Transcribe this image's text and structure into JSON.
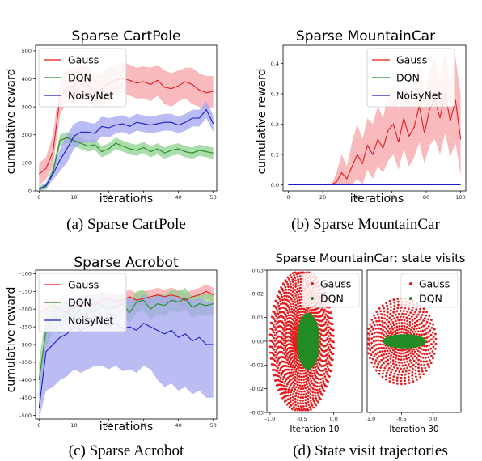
{
  "colors": {
    "gauss": "#e8191c",
    "gauss_band": "#f5a3a5",
    "dqn": "#238b23",
    "dqn_band": "#8fd08f",
    "noisynet": "#1a1acc",
    "noisynet_band": "#a6a6f0"
  },
  "chart_data": [
    {
      "type": "line",
      "title": "Sparse CartPole",
      "caption": "(a)  Sparse CartPole",
      "xlabel": "iterations",
      "ylabel": "cumulative reward",
      "xlim": [
        -1,
        51
      ],
      "ylim": [
        0,
        520
      ],
      "xticks": [
        "0",
        "10",
        "20",
        "30",
        "40",
        "50"
      ],
      "yticks": [
        "0",
        "100",
        "200",
        "300",
        "400",
        "500"
      ],
      "legend": "top-left",
      "x": [
        0,
        2,
        4,
        6,
        8,
        10,
        12,
        14,
        16,
        18,
        20,
        22,
        24,
        26,
        28,
        30,
        32,
        34,
        36,
        38,
        40,
        42,
        44,
        46,
        48,
        50
      ],
      "series": [
        {
          "name": "Gauss",
          "color_key": "gauss",
          "values": [
            60,
            80,
            140,
            330,
            370,
            375,
            395,
            380,
            350,
            365,
            385,
            395,
            400,
            395,
            385,
            390,
            380,
            395,
            370,
            365,
            375,
            390,
            380,
            360,
            350,
            355
          ],
          "lower": [
            20,
            40,
            90,
            270,
            320,
            310,
            340,
            320,
            300,
            300,
            330,
            340,
            350,
            340,
            330,
            330,
            320,
            340,
            310,
            300,
            320,
            330,
            310,
            300,
            290,
            300
          ],
          "upper": [
            100,
            120,
            200,
            390,
            430,
            440,
            450,
            440,
            410,
            420,
            440,
            450,
            460,
            450,
            440,
            445,
            440,
            450,
            430,
            420,
            430,
            440,
            440,
            420,
            410,
            410
          ]
        },
        {
          "name": "DQN",
          "color_key": "dqn",
          "values": [
            10,
            15,
            70,
            180,
            190,
            180,
            170,
            160,
            165,
            140,
            150,
            170,
            160,
            150,
            145,
            155,
            140,
            150,
            135,
            145,
            150,
            140,
            135,
            145,
            140,
            135
          ],
          "lower": [
            0,
            5,
            50,
            160,
            170,
            160,
            150,
            140,
            145,
            120,
            130,
            150,
            140,
            130,
            125,
            135,
            120,
            130,
            115,
            125,
            130,
            120,
            115,
            125,
            120,
            115
          ],
          "upper": [
            20,
            25,
            90,
            200,
            210,
            200,
            190,
            180,
            185,
            160,
            170,
            190,
            180,
            170,
            165,
            175,
            160,
            170,
            155,
            165,
            170,
            160,
            155,
            165,
            160,
            155
          ]
        },
        {
          "name": "NoisyNet",
          "color_key": "noisynet",
          "values": [
            5,
            20,
            60,
            110,
            150,
            195,
            210,
            210,
            205,
            230,
            225,
            235,
            240,
            230,
            245,
            240,
            235,
            240,
            245,
            245,
            235,
            245,
            260,
            260,
            290,
            240
          ],
          "lower": [
            0,
            10,
            40,
            70,
            100,
            150,
            170,
            175,
            170,
            195,
            190,
            205,
            210,
            200,
            215,
            210,
            205,
            210,
            215,
            215,
            205,
            215,
            230,
            230,
            260,
            210
          ],
          "upper": [
            10,
            30,
            80,
            150,
            200,
            240,
            250,
            245,
            240,
            265,
            260,
            265,
            270,
            260,
            275,
            270,
            265,
            270,
            275,
            275,
            265,
            275,
            290,
            290,
            320,
            270
          ]
        }
      ]
    },
    {
      "type": "line",
      "title": "Sparse MountainCar",
      "caption": "(b)  Sparse MountainCar",
      "xlabel": "iterations",
      "ylabel": "cumulative reward",
      "xlim": [
        -3,
        103
      ],
      "ylim": [
        -0.02,
        0.46
      ],
      "xticks": [
        "0",
        "20",
        "40",
        "60",
        "80",
        "100"
      ],
      "yticks": [
        "0.0",
        "0.1",
        "0.2",
        "0.3",
        "0.4"
      ],
      "legend": "top-right",
      "x": [
        0,
        5,
        10,
        15,
        20,
        25,
        28,
        31,
        34,
        37,
        40,
        43,
        46,
        49,
        52,
        55,
        58,
        61,
        64,
        67,
        70,
        73,
        76,
        79,
        82,
        85,
        88,
        91,
        94,
        97,
        100
      ],
      "series": [
        {
          "name": "Gauss",
          "color_key": "gauss",
          "values": [
            0,
            0,
            0,
            0,
            0,
            0,
            0.01,
            0.04,
            0.02,
            0.06,
            0.1,
            0.07,
            0.13,
            0.1,
            0.15,
            0.12,
            0.18,
            0.2,
            0.14,
            0.22,
            0.16,
            0.19,
            0.26,
            0.17,
            0.25,
            0.28,
            0.22,
            0.3,
            0.21,
            0.28,
            0.15
          ],
          "lower": [
            0,
            0,
            0,
            0,
            0,
            0,
            0,
            0,
            0,
            0,
            0.02,
            0,
            0.05,
            0.02,
            0.06,
            0.04,
            0.08,
            0.1,
            0.05,
            0.12,
            0.06,
            0.09,
            0.14,
            0.07,
            0.13,
            0.15,
            0.1,
            0.17,
            0.09,
            0.14,
            0.03
          ],
          "upper": [
            0,
            0,
            0,
            0,
            0,
            0,
            0.04,
            0.1,
            0.06,
            0.14,
            0.2,
            0.15,
            0.22,
            0.2,
            0.26,
            0.22,
            0.3,
            0.33,
            0.25,
            0.35,
            0.28,
            0.32,
            0.4,
            0.3,
            0.38,
            0.42,
            0.35,
            0.44,
            0.34,
            0.42,
            0.3
          ]
        },
        {
          "name": "DQN",
          "color_key": "dqn",
          "values": [
            0,
            0,
            0,
            0,
            0,
            0,
            0,
            0,
            0,
            0,
            0,
            0,
            0,
            0,
            0,
            0,
            0,
            0,
            0,
            0,
            0,
            0,
            0,
            0,
            0,
            0,
            0,
            0,
            0,
            0,
            0
          ],
          "lower": [
            0,
            0,
            0,
            0,
            0,
            0,
            0,
            0,
            0,
            0,
            0,
            0,
            0,
            0,
            0,
            0,
            0,
            0,
            0,
            0,
            0,
            0,
            0,
            0,
            0,
            0,
            0,
            0,
            0,
            0,
            0
          ],
          "upper": [
            0,
            0,
            0,
            0,
            0,
            0,
            0,
            0,
            0,
            0,
            0,
            0,
            0,
            0,
            0,
            0,
            0,
            0,
            0,
            0,
            0,
            0,
            0,
            0,
            0,
            0,
            0,
            0,
            0,
            0,
            0
          ]
        },
        {
          "name": "NoisyNet",
          "color_key": "noisynet",
          "values": [
            0,
            0,
            0,
            0,
            0,
            0,
            0,
            0,
            0,
            0,
            0,
            0,
            0,
            0,
            0,
            0,
            0,
            0,
            0,
            0,
            0,
            0,
            0,
            0,
            0,
            0,
            0,
            0,
            0,
            0,
            0
          ],
          "lower": [
            0,
            0,
            0,
            0,
            0,
            0,
            0,
            0,
            0,
            0,
            0,
            0,
            0,
            0,
            0,
            0,
            0,
            0,
            0,
            0,
            0,
            0,
            0,
            0,
            0,
            0,
            0,
            0,
            0,
            0,
            0
          ],
          "upper": [
            0,
            0,
            0,
            0,
            0,
            0,
            0,
            0,
            0,
            0,
            0,
            0,
            0,
            0,
            0,
            0,
            0,
            0,
            0,
            0,
            0,
            0,
            0,
            0,
            0,
            0,
            0,
            0,
            0,
            0,
            0
          ]
        }
      ]
    },
    {
      "type": "line",
      "title": "Sparse Acrobot",
      "caption": "(c)  Sparse Acrobot",
      "xlabel": "iterations",
      "ylabel": "cumulative reward",
      "xlim": [
        -1,
        51
      ],
      "ylim": [
        -510,
        -90
      ],
      "xticks": [
        "0",
        "10",
        "20",
        "30",
        "40",
        "50"
      ],
      "yticks": [
        "-100",
        "-150",
        "-200",
        "-250",
        "-300",
        "-350",
        "-400",
        "-450",
        "-500"
      ],
      "legend": "top-right",
      "x": [
        0,
        2,
        4,
        6,
        8,
        10,
        12,
        14,
        16,
        18,
        20,
        22,
        24,
        26,
        28,
        30,
        32,
        34,
        36,
        38,
        40,
        42,
        44,
        46,
        48,
        50
      ],
      "series": [
        {
          "name": "Gauss",
          "color_key": "gauss",
          "values": [
            -210,
            -200,
            -190,
            -200,
            -210,
            -195,
            -185,
            -180,
            -190,
            -175,
            -170,
            -180,
            -175,
            -165,
            -175,
            -170,
            -165,
            -160,
            -165,
            -160,
            -165,
            -175,
            -165,
            -160,
            -150,
            -160
          ],
          "lower": [
            -230,
            -220,
            -210,
            -230,
            -250,
            -220,
            -205,
            -200,
            -210,
            -195,
            -190,
            -200,
            -195,
            -185,
            -195,
            -190,
            -185,
            -180,
            -185,
            -180,
            -185,
            -195,
            -185,
            -180,
            -170,
            -180
          ],
          "upper": [
            -190,
            -180,
            -170,
            -175,
            -175,
            -170,
            -165,
            -160,
            -170,
            -155,
            -150,
            -160,
            -155,
            -145,
            -155,
            -150,
            -145,
            -140,
            -145,
            -140,
            -145,
            -155,
            -145,
            -140,
            -130,
            -140
          ]
        },
        {
          "name": "DQN",
          "color_key": "dqn",
          "values": [
            -400,
            -260,
            -220,
            -230,
            -210,
            -220,
            -200,
            -210,
            -205,
            -190,
            -200,
            -195,
            -185,
            -210,
            -180,
            -175,
            -200,
            -185,
            -190,
            -175,
            -180,
            -170,
            -195,
            -185,
            -190,
            -185
          ],
          "lower": [
            -450,
            -310,
            -260,
            -270,
            -250,
            -250,
            -230,
            -240,
            -235,
            -220,
            -230,
            -225,
            -215,
            -240,
            -210,
            -205,
            -230,
            -215,
            -220,
            -205,
            -210,
            -200,
            -225,
            -215,
            -220,
            -215
          ],
          "upper": [
            -350,
            -210,
            -180,
            -190,
            -175,
            -190,
            -170,
            -180,
            -175,
            -160,
            -170,
            -165,
            -155,
            -180,
            -150,
            -145,
            -170,
            -155,
            -160,
            -145,
            -150,
            -140,
            -165,
            -155,
            -160,
            -155
          ]
        },
        {
          "name": "NoisyNet",
          "color_key": "noisynet",
          "values": [
            -480,
            -320,
            -300,
            -280,
            -270,
            -250,
            -260,
            -250,
            -240,
            -235,
            -250,
            -240,
            -255,
            -250,
            -260,
            -240,
            -250,
            -260,
            -270,
            -260,
            -280,
            -270,
            -290,
            -280,
            -300,
            -300
          ],
          "lower": [
            -510,
            -430,
            -420,
            -400,
            -390,
            -370,
            -380,
            -370,
            -360,
            -360,
            -370,
            -360,
            -375,
            -370,
            -380,
            -360,
            -370,
            -400,
            -420,
            -410,
            -430,
            -420,
            -440,
            -430,
            -450,
            -450
          ],
          "upper": [
            -440,
            -220,
            -200,
            -190,
            -180,
            -170,
            -170,
            -160,
            -160,
            -150,
            -165,
            -160,
            -170,
            -165,
            -175,
            -160,
            -170,
            -160,
            -165,
            -160,
            -170,
            -165,
            -175,
            -170,
            -180,
            -180
          ]
        }
      ]
    },
    {
      "type": "scatter",
      "title": "Sparse MountainCar: state visits",
      "caption": "(d)  State visit trajectories",
      "legend": "top-right",
      "series_names": [
        "Gauss",
        "DQN"
      ],
      "panels": [
        {
          "label": "Iteration 10",
          "xlim": [
            -1.05,
            0.45
          ],
          "ylim": [
            -0.03,
            0.03
          ],
          "xticks": [
            "-1.0",
            "-0.5",
            "0.0"
          ],
          "yticks": [
            "0.03",
            "0.02",
            "0.01",
            "0.00",
            "-0.01",
            "-0.02",
            "-0.03"
          ],
          "gauss": {
            "cx": -0.5,
            "cy": 0.0,
            "r_min": 0.03,
            "r_max": 0.5,
            "v_max": 0.03
          },
          "dqn": {
            "cx": -0.4,
            "cy": 0.0,
            "rx": 0.18,
            "ry": 0.012
          }
        },
        {
          "label": "Iteration 30",
          "xlim": [
            -1.05,
            0.45
          ],
          "ylim": [
            -0.03,
            0.03
          ],
          "xticks": [
            "-1.0",
            "-0.5",
            "0.0"
          ],
          "yticks": [],
          "gauss": {
            "cx": -0.5,
            "cy": 0.0,
            "r_min": 0.05,
            "r_max": 0.55,
            "v_max": 0.018
          },
          "dqn": {
            "cx": -0.45,
            "cy": 0.0,
            "rx": 0.35,
            "ry": 0.003
          }
        }
      ]
    }
  ]
}
